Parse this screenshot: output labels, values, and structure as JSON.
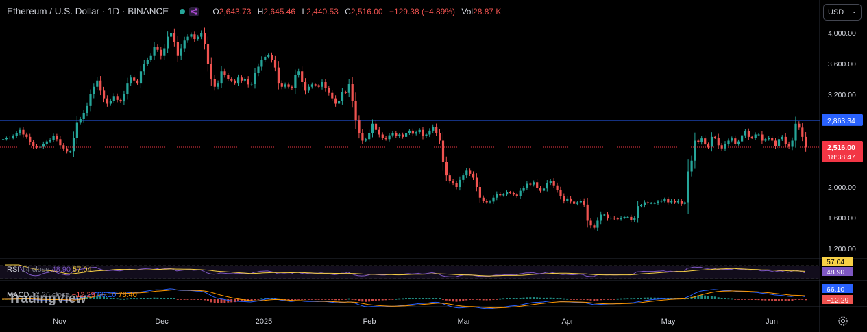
{
  "header": {
    "symbol": "Ethereum / U.S. Dollar · 1D · BINANCE",
    "o_key": "O",
    "o": "2,643.73",
    "h_key": "H",
    "h": "2,645.46",
    "l_key": "L",
    "l": "2,440.53",
    "c_key": "C",
    "c": "2,516.00",
    "change": "−129.38 (−4.89%)",
    "vol_key": "Vol",
    "vol": "28.87 K"
  },
  "currency_select": {
    "label": "USD"
  },
  "indicators": {
    "rsi": {
      "name": "RSI",
      "params": "14 close",
      "v1": "48.90",
      "v2": "57.04"
    },
    "macd": {
      "name": "MACD",
      "params": "12 26 close",
      "v1": "−12.29",
      "v2": "66.10",
      "v3": "78.40"
    }
  },
  "watermark": "TradingView",
  "colors": {
    "up": "#26a69a",
    "down": "#ef5350",
    "line": "#2962ff",
    "rsi": "#7e57c2",
    "signal": "#ff9800",
    "price": "#f23645"
  },
  "chart_data": {
    "type": "candlestick",
    "ylim": [
      1200,
      4200
    ],
    "y_ticks": [
      "4,000.00",
      "3,600.00",
      "3,200.00",
      "2,000.00",
      "1,600.00",
      "1,200.00"
    ],
    "x_tick_labels": [
      "Nov",
      "Dec",
      "2025",
      "Feb",
      "Mar",
      "Apr",
      "May",
      "Jun"
    ],
    "horizontal_line": {
      "value": 2863.34,
      "label": "2,863.34"
    },
    "last_price": {
      "value": 2516.0,
      "label": "2,516.00",
      "countdown": "18:38:47"
    },
    "close": [
      2620,
      2635,
      2640,
      2660,
      2700,
      2740,
      2680,
      2650,
      2580,
      2530,
      2510,
      2520,
      2560,
      2590,
      2610,
      2660,
      2620,
      2540,
      2500,
      2460,
      2460,
      2640,
      2840,
      2880,
      2960,
      3050,
      3200,
      3300,
      3380,
      3250,
      3150,
      3080,
      3120,
      3180,
      3130,
      3110,
      3200,
      3350,
      3420,
      3380,
      3350,
      3500,
      3600,
      3650,
      3700,
      3820,
      3780,
      3700,
      3800,
      3950,
      4000,
      3880,
      3700,
      3800,
      3900,
      3950,
      3980,
      3920,
      3950,
      4000,
      3850,
      3600,
      3400,
      3300,
      3350,
      3500,
      3450,
      3400,
      3380,
      3350,
      3420,
      3380,
      3400,
      3330,
      3340,
      3480,
      3560,
      3650,
      3690,
      3710,
      3650,
      3550,
      3350,
      3300,
      3330,
      3300,
      3280,
      3450,
      3500,
      3360,
      3250,
      3300,
      3330,
      3320,
      3300,
      3360,
      3280,
      3220,
      3150,
      3080,
      3120,
      3230,
      3220,
      3340,
      3120,
      2860,
      2700,
      2600,
      2620,
      2700,
      2820,
      2740,
      2680,
      2640,
      2620,
      2670,
      2700,
      2660,
      2680,
      2650,
      2700,
      2730,
      2690,
      2710,
      2740,
      2660,
      2680,
      2730,
      2780,
      2700,
      2600,
      2320,
      2150,
      2080,
      2050,
      2000,
      2090,
      2150,
      2210,
      2170,
      2120,
      2000,
      1860,
      1820,
      1800,
      1810,
      1860,
      1910,
      1890,
      1900,
      1930,
      1920,
      1900,
      1880,
      1950,
      1990,
      2040,
      2030,
      2060,
      1990,
      1950,
      1980,
      2050,
      2080,
      2020,
      1960,
      1880,
      1820,
      1850,
      1810,
      1780,
      1800,
      1820,
      1770,
      1560,
      1500,
      1470,
      1560,
      1640,
      1640,
      1590,
      1600,
      1590,
      1580,
      1600,
      1610,
      1610,
      1570,
      1600,
      1750,
      1760,
      1800,
      1790,
      1790,
      1790,
      1810,
      1820,
      1840,
      1800,
      1820,
      1800,
      1820,
      1780,
      1800,
      2200,
      2340,
      2600,
      2580,
      2630,
      2550,
      2520,
      2650,
      2640,
      2540,
      2500,
      2560,
      2600,
      2630,
      2560,
      2590,
      2670,
      2720,
      2650,
      2640,
      2680,
      2680,
      2600,
      2620,
      2640,
      2600,
      2530,
      2620,
      2650,
      2560,
      2520,
      2600,
      2820,
      2770,
      2650,
      2516
    ]
  }
}
